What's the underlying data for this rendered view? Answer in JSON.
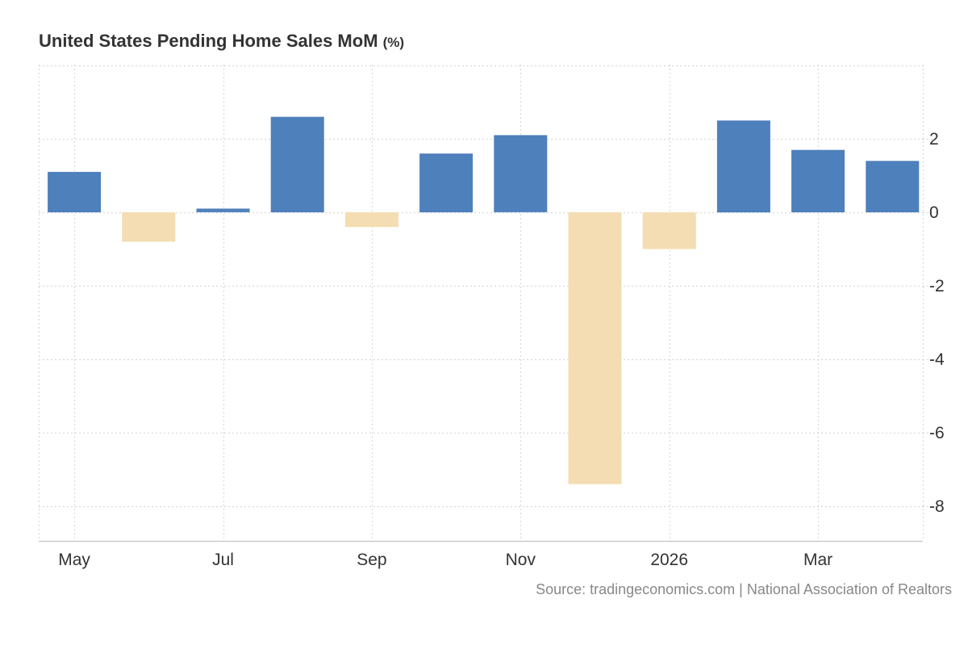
{
  "chart_data": {
    "type": "bar",
    "title": "United States Pending Home Sales MoM",
    "unit": "(%)",
    "categories": [
      "May 2025",
      "Jun 2025",
      "Jul 2025",
      "Aug 2025",
      "Sep 2025",
      "Oct 2025",
      "Nov 2025",
      "Dec 2025",
      "Jan 2026",
      "Feb 2026",
      "Mar 2026",
      "Apr 2026"
    ],
    "values": [
      1.1,
      -0.8,
      0.1,
      2.6,
      -0.4,
      1.6,
      2.1,
      -7.4,
      -1.0,
      2.5,
      1.7,
      1.4
    ],
    "x_tick_labels": [
      "May",
      "Jul",
      "Sep",
      "Nov",
      "2026",
      "Mar"
    ],
    "y_ticks": [
      2,
      0,
      -2,
      -4,
      -6,
      -8
    ],
    "ylim": [
      -9,
      4
    ],
    "grid": true,
    "y_axis_position": "right",
    "colors": {
      "positive": "#4e80bc",
      "negative": "#f4ddb2",
      "grid": "#d9d9d9",
      "axis": "#cccccc",
      "text": "#333333",
      "source": "#888888"
    }
  },
  "source": "Source: tradingeconomics.com | National Association of Realtors"
}
